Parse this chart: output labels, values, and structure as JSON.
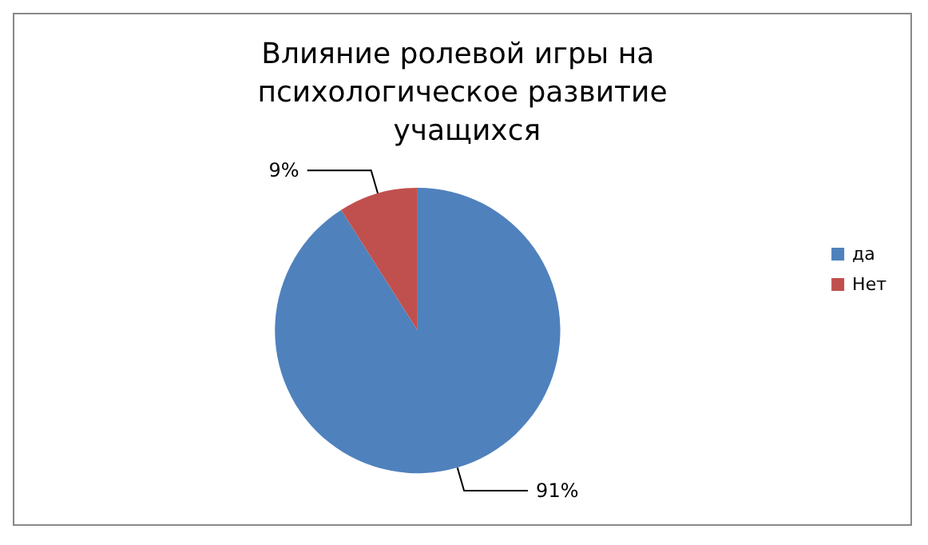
{
  "chart_data": {
    "type": "pie",
    "title": "Влияние ролевой игры на психологическое развитие учащихся",
    "categories": [
      "да",
      "Нет"
    ],
    "values": [
      91,
      9
    ],
    "colors": [
      "#4f81bd",
      "#c0504d"
    ],
    "value_labels": [
      "91%",
      "9%"
    ],
    "legend": "right"
  }
}
